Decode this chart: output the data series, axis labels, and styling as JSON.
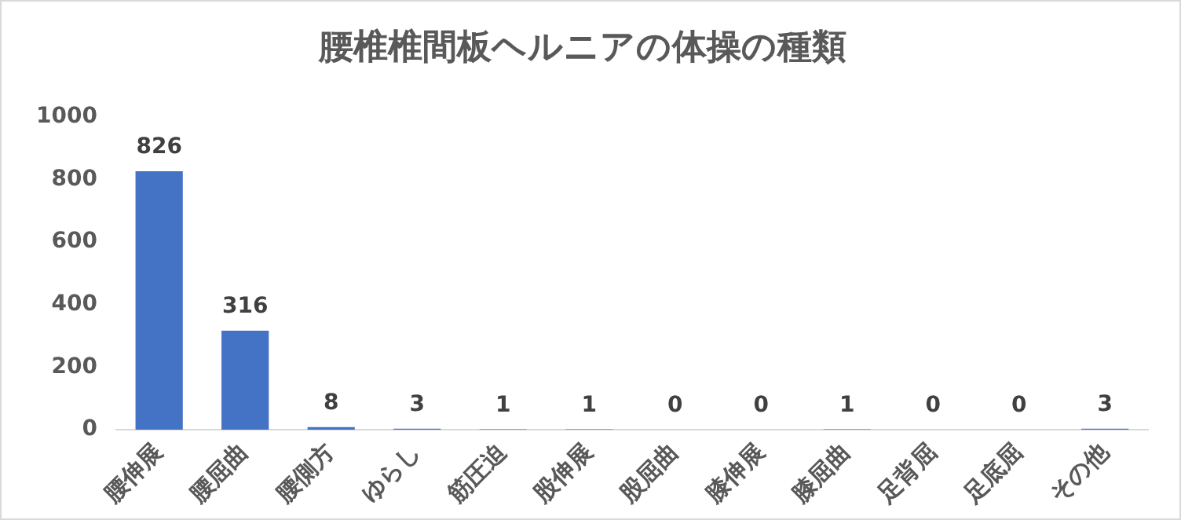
{
  "chart_data": {
    "type": "bar",
    "title": "腰椎椎間板ヘルニアの体操の種類",
    "categories": [
      "腰伸展",
      "腰屈曲",
      "腰側方",
      "ゆらし",
      "筋圧迫",
      "股伸展",
      "股屈曲",
      "膝伸展",
      "膝屈曲",
      "足背屈",
      "足底屈",
      "その他"
    ],
    "values": [
      826,
      316,
      8,
      3,
      1,
      1,
      0,
      0,
      1,
      0,
      0,
      3
    ],
    "color": "#4472c4",
    "ylim": [
      0,
      1000
    ],
    "yticks": [
      0,
      200,
      400,
      600,
      800,
      1000
    ],
    "grid": false,
    "legend": false,
    "data_labels": true
  }
}
